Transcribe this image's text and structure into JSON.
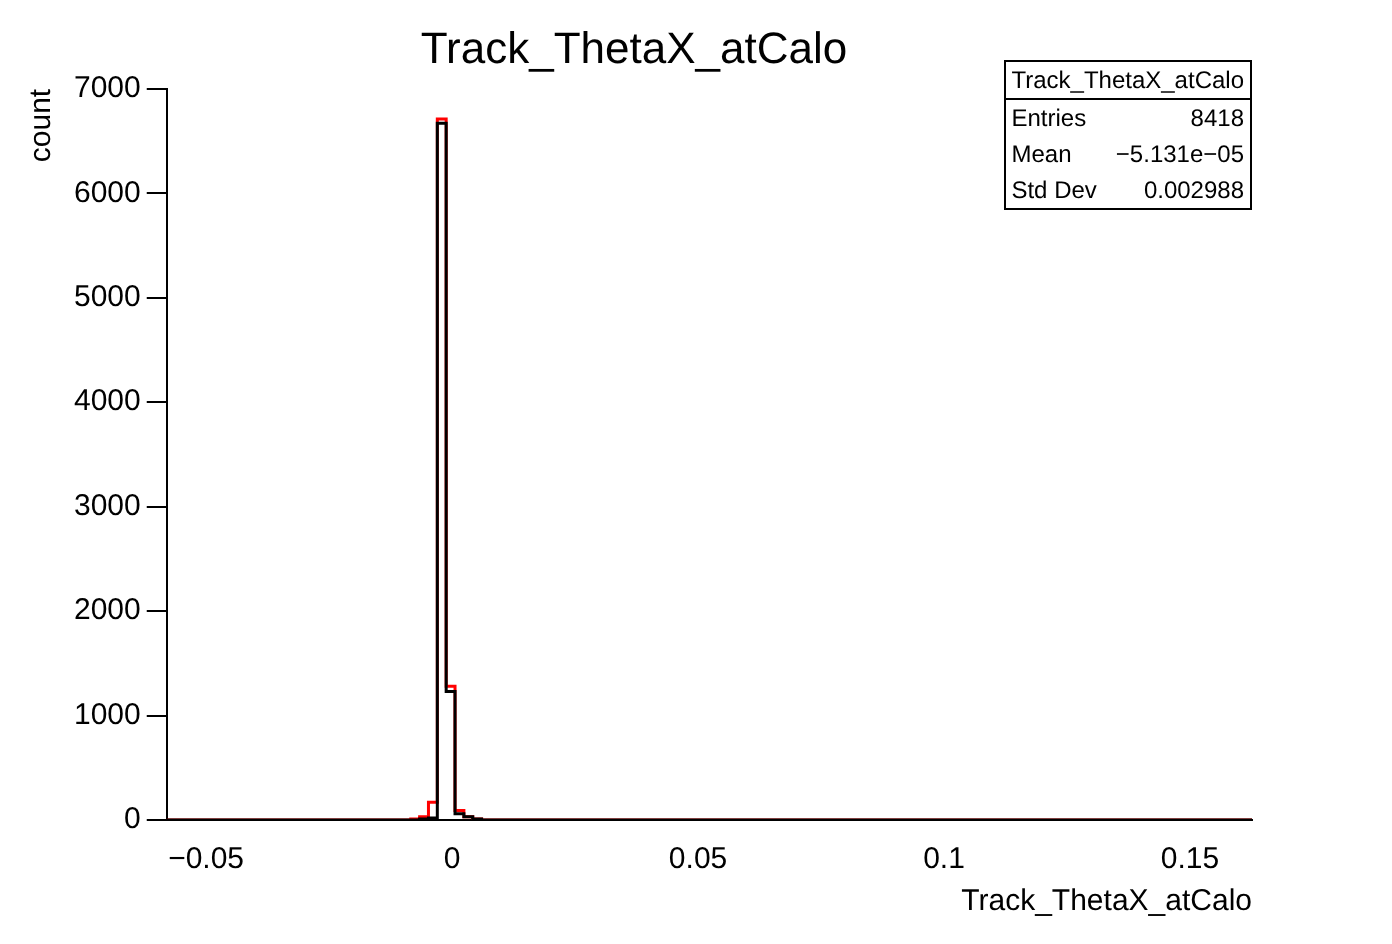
{
  "chart_data": {
    "type": "histogram",
    "title": "Track_ThetaX_atCalo",
    "xlabel": "Track_ThetaX_atCalo",
    "ylabel": "count",
    "bins": [
      -0.058,
      -0.0084,
      -0.0066,
      -0.0048,
      -0.003,
      -0.0012,
      0.0006,
      0.0024,
      0.0042,
      0.006,
      0.0078,
      0.1626
    ],
    "series": [
      {
        "color": "#000000",
        "values": [
          0,
          0,
          0,
          10,
          20,
          6670,
          1230,
          60,
          30,
          10,
          0
        ]
      },
      {
        "color": "#ff0000",
        "values": [
          0,
          0,
          10,
          30,
          170,
          6710,
          1280,
          90,
          30,
          10,
          0
        ]
      }
    ],
    "xlim": [
      -0.058,
      0.1626
    ],
    "xticks": [
      {
        "value": -0.05,
        "label": "−0.05"
      },
      0,
      0.05,
      0.1,
      0.15
    ],
    "ylim": [
      0,
      7000
    ],
    "yticks": [
      0,
      1000,
      2000,
      3000,
      4000,
      5000,
      6000,
      7000
    ],
    "grid": false,
    "legend": false,
    "annotations": [
      "Track_ThetaX_atCalo",
      "Entries",
      "8418",
      "Mean",
      "−5.131e−05",
      "Std Dev",
      "0.002988"
    ]
  }
}
